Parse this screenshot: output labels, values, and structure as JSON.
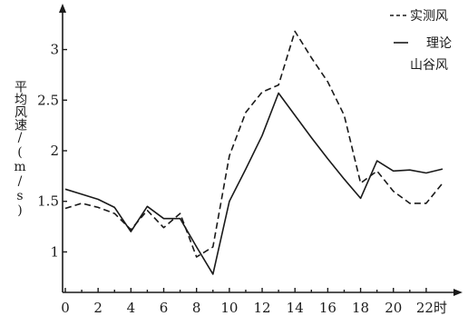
{
  "chart_data": {
    "type": "line",
    "title": "",
    "xlabel": "",
    "ylabel": "平均风速/(m/s)",
    "x_unit_suffix": "时",
    "xlim": [
      0,
      23
    ],
    "ylim": [
      0.6,
      3.4
    ],
    "x_ticks": [
      0,
      2,
      4,
      6,
      8,
      10,
      12,
      14,
      16,
      18,
      20,
      22
    ],
    "y_ticks": [
      1,
      1.5,
      2,
      2.5,
      3
    ],
    "y_tick_labels": [
      "1",
      "1.5",
      "2",
      "2.5",
      "3"
    ],
    "grid": false,
    "legend_position": "top-right",
    "series": [
      {
        "name": "实测风",
        "line_style": "dashed",
        "color": "#1a1a1a",
        "x": [
          0,
          1,
          2,
          3,
          4,
          5,
          6,
          7,
          8,
          9,
          10,
          11,
          12,
          13,
          14,
          15,
          16,
          17,
          18,
          19,
          20,
          21,
          22,
          23
        ],
        "values": [
          1.43,
          1.48,
          1.44,
          1.38,
          1.22,
          1.41,
          1.24,
          1.38,
          0.95,
          1.05,
          1.95,
          2.38,
          2.58,
          2.65,
          3.18,
          2.92,
          2.68,
          2.35,
          1.68,
          1.8,
          1.6,
          1.48,
          1.48,
          1.68
        ]
      },
      {
        "name": "理论\n山谷风",
        "line_style": "solid",
        "color": "#1a1a1a",
        "x": [
          0,
          1,
          2,
          3,
          4,
          5,
          6,
          7,
          8,
          9,
          10,
          11,
          12,
          13,
          14,
          15,
          16,
          17,
          18,
          19,
          20,
          21,
          22,
          23
        ],
        "values": [
          1.62,
          1.57,
          1.52,
          1.44,
          1.2,
          1.45,
          1.33,
          1.33,
          1.05,
          0.78,
          1.5,
          1.82,
          2.15,
          2.57,
          2.35,
          2.13,
          1.92,
          1.72,
          1.53,
          1.9,
          1.8,
          1.81,
          1.78,
          1.82
        ]
      }
    ]
  }
}
